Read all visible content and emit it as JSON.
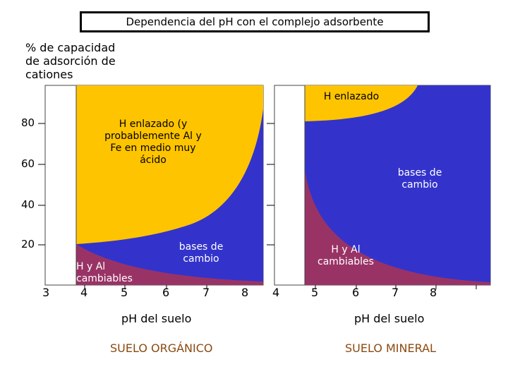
{
  "title": "Dependencia del pH con el complejo adsorbente",
  "y_axis": {
    "label_lines": [
      "% de capacidad",
      "de adsorción de",
      "cationes"
    ],
    "ticks": [
      "80",
      "60",
      "40",
      "20"
    ]
  },
  "panels": [
    {
      "x_ticks": [
        "3",
        "4",
        "5",
        "6",
        "7",
        "8"
      ],
      "x_label": "pH del suelo",
      "soil_label": "SUELO ORGÁNICO",
      "regions": {
        "h_bound": [
          "H enlazado (y",
          "probablemente Al y",
          "Fe en medio muy",
          "ácido"
        ],
        "exchange_bases": [
          "bases de",
          "cambio"
        ],
        "h_al_exchangeable": [
          "H y Al",
          "cambiables"
        ]
      }
    },
    {
      "x_ticks": [
        "4",
        "5",
        "6",
        "7",
        "8"
      ],
      "x_label": "pH del suelo",
      "soil_label": "SUELO MINERAL",
      "regions": {
        "h_bound": [
          "H enlazado"
        ],
        "exchange_bases": [
          "bases de",
          "cambio"
        ],
        "h_al_exchangeable": [
          "H y Al",
          "cambiables"
        ]
      }
    }
  ],
  "colors": {
    "h_bound": "#ffc400",
    "exchange_bases": "#3333cc",
    "h_al_exchangeable": "#993366"
  }
}
